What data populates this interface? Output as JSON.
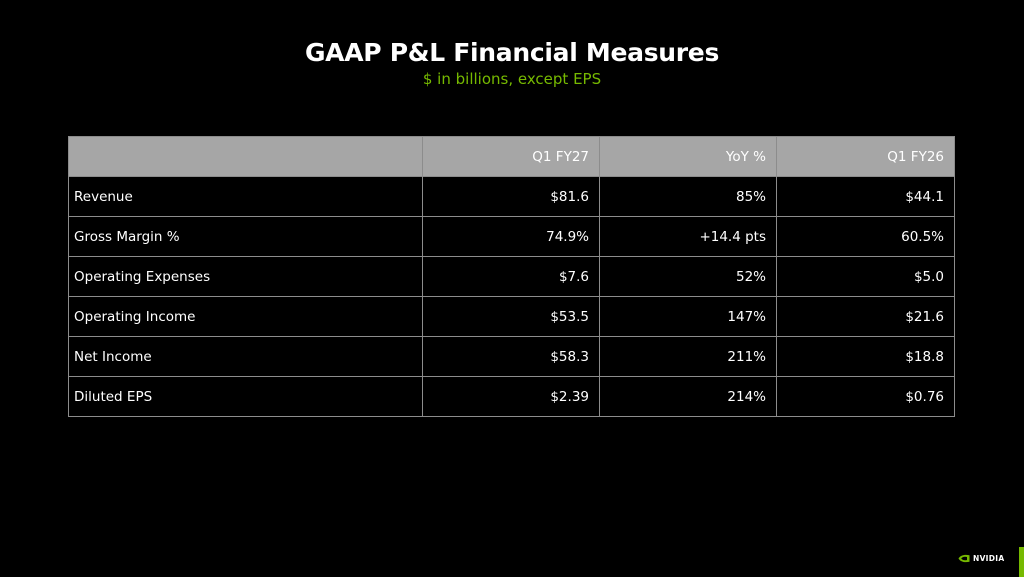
{
  "slide": {
    "title": "GAAP P&L Financial Measures",
    "subtitle": "$ in billions, except EPS",
    "accent_color": "#76b900",
    "header_bg_color": "#a6a6a6"
  },
  "table": {
    "columns": [
      "",
      "Q1 FY27",
      "YoY %",
      "Q1 FY26"
    ],
    "rows": [
      {
        "label": "Revenue",
        "q1_fy27": "$81.6",
        "yoy": "85%",
        "q1_fy26": "$44.1"
      },
      {
        "label": "Gross Margin %",
        "q1_fy27": "74.9%",
        "yoy": "+14.4 pts",
        "q1_fy26": "60.5%"
      },
      {
        "label": "Operating Expenses",
        "q1_fy27": "$7.6",
        "yoy": "52%",
        "q1_fy26": "$5.0"
      },
      {
        "label": "Operating Income",
        "q1_fy27": "$53.5",
        "yoy": "147%",
        "q1_fy26": "$21.6"
      },
      {
        "label": "Net Income",
        "q1_fy27": "$58.3",
        "yoy": "211%",
        "q1_fy26": "$18.8"
      },
      {
        "label": "Diluted EPS",
        "q1_fy27": "$2.39",
        "yoy": "214%",
        "q1_fy26": "$0.76"
      }
    ]
  },
  "footer": {
    "logo_text": "NVIDIA",
    "logo_icon": "nvidia-eye-icon"
  }
}
